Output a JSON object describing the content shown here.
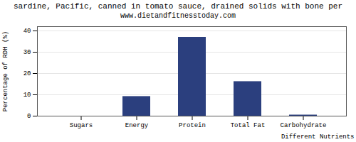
{
  "chart_data": {
    "type": "bar",
    "title": "sardine, Pacific, canned in tomato sauce, drained solids with bone per",
    "subtitle": "www.dietandfitnesstoday.com",
    "xlabel": "Different Nutrients",
    "ylabel": "Percentage of RDH (%)",
    "categories": [
      "Sugars",
      "Energy",
      "Protein",
      "Total Fat",
      "Carbohydrate"
    ],
    "values": [
      0,
      9.2,
      37.0,
      16.2,
      0.5
    ],
    "color": "#2b3f7e",
    "ylim": [
      0,
      42
    ],
    "yticks": [
      0,
      10,
      20,
      30,
      40
    ],
    "grid": true
  }
}
